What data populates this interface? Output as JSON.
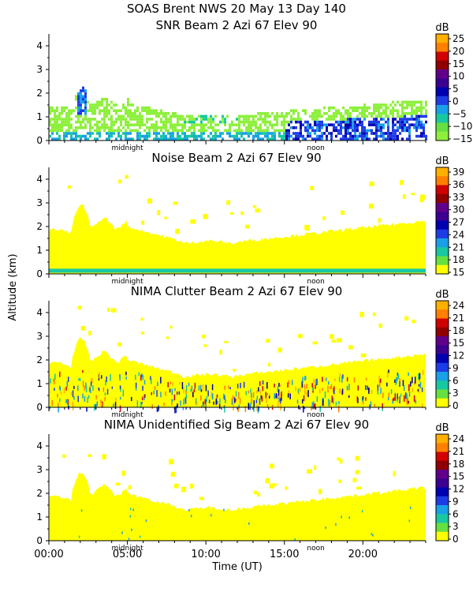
{
  "header": {
    "line1": "SOAS Brent NWS  20 May 13 Day 140"
  },
  "y_axis_label": "Altitude (km)",
  "x_axis_label": "Time (UT)",
  "time_ticks": [
    "00:00",
    "05:00",
    "10:00",
    "15:00",
    "20:00"
  ],
  "day_markers": {
    "midnight": "midnight",
    "noon": "noon"
  },
  "chart_data": [
    {
      "type": "heatmap",
      "title": "SNR Beam 2 Azi  67 Elev 90",
      "xlabel": "Time (UT)",
      "ylabel": "Altitude (km)",
      "xlim_hours": [
        0,
        24
      ],
      "ylim_km": [
        0,
        4.5
      ],
      "y_ticks": [
        "0",
        "1",
        "2",
        "3",
        "4"
      ],
      "colorbar_unit": "dB",
      "colorbar_labels": [
        "25",
        "20",
        "15",
        "10",
        "5",
        "0",
        "−5",
        "−10",
        "−15"
      ],
      "colorbar_colors": [
        "#FFB000",
        "#FF8000",
        "#D00000",
        "#900000",
        "#60008A",
        "#3C0090",
        "#0000B0",
        "#1E3CE6",
        "#19A0E6",
        "#17C8A0",
        "#66E040",
        "#8EF03C"
      ]
    },
    {
      "type": "heatmap",
      "title": "Noise Beam 2 Azi  67 Elev 90",
      "xlabel": "Time (UT)",
      "ylabel": "Altitude (km)",
      "xlim_hours": [
        0,
        24
      ],
      "ylim_km": [
        0,
        4.5
      ],
      "y_ticks": [
        "0",
        "1",
        "2",
        "3",
        "4"
      ],
      "colorbar_unit": "dB",
      "colorbar_labels": [
        "39",
        "36",
        "33",
        "30",
        "27",
        "24",
        "21",
        "18",
        "15"
      ],
      "colorbar_colors": [
        "#FFB000",
        "#FF8000",
        "#D00000",
        "#900000",
        "#60008A",
        "#3C0090",
        "#0000B0",
        "#1E3CE6",
        "#19A0E6",
        "#17C8A0",
        "#66E040",
        "#FFFF00"
      ]
    },
    {
      "type": "heatmap",
      "title": "NIMA Clutter Beam 2 Azi  67 Elev 90",
      "xlabel": "Time (UT)",
      "ylabel": "Altitude (km)",
      "xlim_hours": [
        0,
        24
      ],
      "ylim_km": [
        0,
        4.5
      ],
      "y_ticks": [
        "0",
        "1",
        "2",
        "3",
        "4"
      ],
      "colorbar_unit": "dB",
      "colorbar_labels": [
        "24",
        "21",
        "18",
        "15",
        "12",
        "9",
        "6",
        "3",
        "0"
      ],
      "colorbar_colors": [
        "#FFB000",
        "#FF8000",
        "#D00000",
        "#900000",
        "#60008A",
        "#3C0090",
        "#0000B0",
        "#1E3CE6",
        "#19A0E6",
        "#17C8A0",
        "#66E040",
        "#FFFF00"
      ]
    },
    {
      "type": "heatmap",
      "title": "NIMA Unidentified Sig Beam 2 Azi  67 Elev 90",
      "xlabel": "Time (UT)",
      "ylabel": "Altitude (km)",
      "xlim_hours": [
        0,
        24
      ],
      "ylim_km": [
        0,
        4.5
      ],
      "y_ticks": [
        "0",
        "1",
        "2",
        "3",
        "4"
      ],
      "colorbar_unit": "dB",
      "colorbar_labels": [
        "24",
        "21",
        "18",
        "15",
        "12",
        "9",
        "6",
        "3",
        "0"
      ],
      "colorbar_colors": [
        "#FFB000",
        "#FF8000",
        "#D00000",
        "#900000",
        "#60008A",
        "#3C0090",
        "#0000B0",
        "#1E3CE6",
        "#19A0E6",
        "#17C8A0",
        "#66E040",
        "#FFFF00"
      ]
    }
  ]
}
